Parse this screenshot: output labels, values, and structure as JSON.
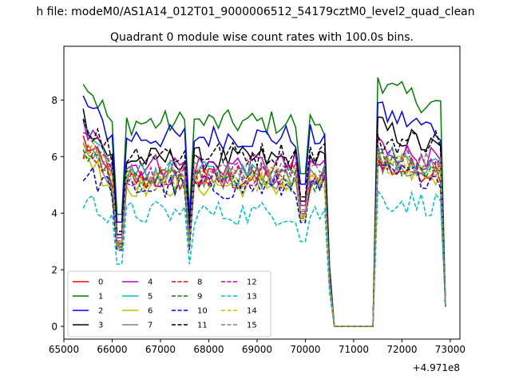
{
  "chart_data": {
    "type": "line",
    "suptitle": "h file: modeM0/AS1A14_012T01_9000006512_54179cztM0_level2_quad_clean",
    "title": "Quadrant 0 module wise count rates with 100.0s bins.",
    "xlabel": "",
    "ylabel": "",
    "offset_text": "+4.971e8",
    "xlim": [
      65000,
      73200
    ],
    "ylim": [
      -0.45,
      9.9
    ],
    "xticks": [
      65000,
      66000,
      67000,
      68000,
      69000,
      70000,
      71000,
      72000,
      73000
    ],
    "yticks": [
      0,
      2,
      4,
      6,
      8
    ],
    "time_range": [
      65400,
      72850
    ],
    "bin": 100,
    "dips": [
      66150,
      67600
    ],
    "gap": [
      70600,
      71400
    ],
    "legend": {
      "placement": "lower-left",
      "ncol": 4
    },
    "series": [
      {
        "name": "0",
        "color": "#ff0000",
        "dash": "solid",
        "base": 5.2,
        "start": 6.6,
        "after": 5.6,
        "end": 5.5
      },
      {
        "name": "1",
        "color": "#008000",
        "dash": "solid",
        "base": 7.2,
        "start": 8.75,
        "after": 8.5,
        "end": 7.8
      },
      {
        "name": "2",
        "color": "#0000ff",
        "dash": "solid",
        "base": 6.7,
        "start": 8.0,
        "after": 7.6,
        "end": 6.9
      },
      {
        "name": "3",
        "color": "#000000",
        "dash": "solid",
        "base": 5.9,
        "start": 7.45,
        "after": 7.1,
        "end": 6.2
      },
      {
        "name": "4",
        "color": "#bf00bf",
        "dash": "solid",
        "base": 5.7,
        "start": 7.1,
        "after": 6.4,
        "end": 5.8
      },
      {
        "name": "5",
        "color": "#00bfbf",
        "dash": "solid",
        "base": 5.4,
        "start": 6.9,
        "after": 6.1,
        "end": 5.6
      },
      {
        "name": "6",
        "color": "#bfbf00",
        "dash": "solid",
        "base": 5.0,
        "start": 6.2,
        "after": 5.8,
        "end": 5.3
      },
      {
        "name": "7",
        "color": "#808080",
        "dash": "solid",
        "base": 5.3,
        "start": 6.7,
        "after": 5.9,
        "end": 5.5
      },
      {
        "name": "8",
        "color": "#ff0000",
        "dash": "dashed",
        "base": 5.3,
        "start": 6.3,
        "after": 5.7,
        "end": 5.4
      },
      {
        "name": "9",
        "color": "#008000",
        "dash": "dashed",
        "base": 5.1,
        "start": 6.4,
        "after": 5.8,
        "end": 5.6
      },
      {
        "name": "10",
        "color": "#0000ff",
        "dash": "dashed",
        "base": 4.9,
        "start": 5.4,
        "after": 5.4,
        "end": 5.3
      },
      {
        "name": "11",
        "color": "#000000",
        "dash": "dashed",
        "base": 6.1,
        "start": 7.3,
        "after": 6.5,
        "end": 6.6
      },
      {
        "name": "12",
        "color": "#bf00bf",
        "dash": "dashed",
        "base": 5.4,
        "start": 6.8,
        "after": 6.0,
        "end": 5.8
      },
      {
        "name": "13",
        "color": "#00bfbf",
        "dash": "dashed",
        "base": 4.0,
        "start": 4.45,
        "after": 4.5,
        "end": 4.3
      },
      {
        "name": "14",
        "color": "#bfbf00",
        "dash": "dashed",
        "base": 5.2,
        "start": 6.5,
        "after": 5.9,
        "end": 5.4
      },
      {
        "name": "15",
        "color": "#808080",
        "dash": "dashed",
        "base": 5.5,
        "start": 6.4,
        "after": 6.0,
        "end": 5.7
      }
    ]
  }
}
